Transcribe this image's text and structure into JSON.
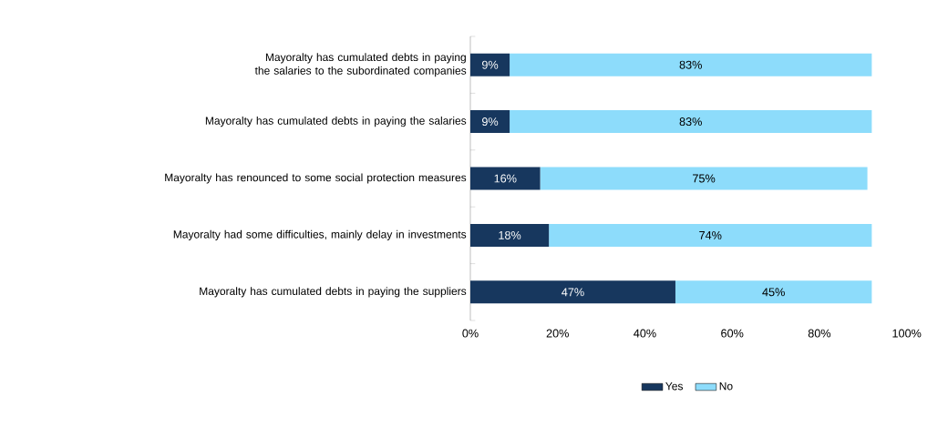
{
  "chart_data": {
    "type": "bar",
    "orientation": "horizontal",
    "stacked": true,
    "categories": [
      "Mayoralty has cumulated debts in paying the salaries to the subordinated companies",
      "Mayoralty has cumulated debts in paying the salaries",
      "Mayoralty has renounced to some social protection measures",
      "Mayoralty had some difficulties, mainly delay in investments",
      "Mayoralty has cumulated debts in paying the suppliers"
    ],
    "series": [
      {
        "name": "Yes",
        "color": "#17375e",
        "values": [
          9,
          9,
          16,
          18,
          47
        ],
        "value_labels": [
          "9%",
          "9%",
          "16%",
          "18%",
          "47%"
        ]
      },
      {
        "name": "No",
        "color": "#8ddcfb",
        "values": [
          83,
          83,
          75,
          74,
          45
        ],
        "value_labels": [
          "83%",
          "83%",
          "75%",
          "74%",
          "45%"
        ]
      }
    ],
    "xlim": [
      0,
      100
    ],
    "xticks": [
      {
        "value": 0,
        "label": "0%"
      },
      {
        "value": 20,
        "label": "20%"
      },
      {
        "value": 40,
        "label": "40%"
      },
      {
        "value": 60,
        "label": "60%"
      },
      {
        "value": 80,
        "label": "80%"
      },
      {
        "value": 100,
        "label": "100%"
      }
    ],
    "legend": "bottom",
    "grid": false
  }
}
